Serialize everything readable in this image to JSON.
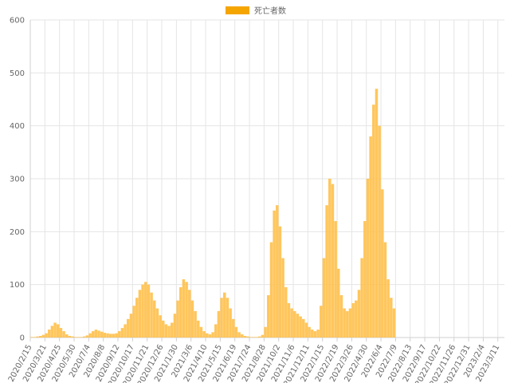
{
  "chart_data": {
    "type": "bar",
    "legend": {
      "label": "死亡者数",
      "position": "top-center",
      "color": "#f5a500"
    },
    "bar_color": "#ffc04a",
    "grid": true,
    "ylim": [
      0,
      600
    ],
    "yticks": [
      0,
      100,
      200,
      300,
      400,
      500,
      600
    ],
    "xticks": [
      "2020/2/15",
      "2020/3/21",
      "2020/4/25",
      "2020/5/30",
      "2020/7/4",
      "2020/8/8",
      "2020/9/12",
      "2020/10/17",
      "2020/11/21",
      "2020/12/26",
      "2021/1/30",
      "2021/3/6",
      "2021/4/10",
      "2021/5/15",
      "2021/6/19",
      "2021/7/24",
      "2021/8/28",
      "2021/10/2",
      "2021/11/6",
      "2021/12/11",
      "2022/1/15",
      "2022/2/19",
      "2022/3/26",
      "2022/4/30",
      "2022/6/4",
      "2022/7/9",
      "2022/8/13",
      "2022/9/17",
      "2022/10/22",
      "2022/11/26",
      "2022/12/31",
      "2023/2/4",
      "2023/3/11"
    ],
    "start_date": "2020/2/15",
    "weekly_series": {
      "name": "死亡者数",
      "x_start": "2020/2/15",
      "interval_days": 7,
      "values": [
        1,
        1,
        2,
        3,
        5,
        8,
        15,
        22,
        28,
        25,
        18,
        12,
        6,
        3,
        2,
        1,
        1,
        1,
        2,
        4,
        8,
        12,
        15,
        13,
        11,
        9,
        8,
        7,
        7,
        8,
        12,
        18,
        25,
        35,
        45,
        60,
        75,
        90,
        100,
        105,
        100,
        85,
        70,
        55,
        42,
        32,
        25,
        22,
        28,
        45,
        70,
        95,
        110,
        105,
        90,
        70,
        50,
        32,
        20,
        12,
        8,
        6,
        10,
        25,
        50,
        75,
        85,
        75,
        55,
        35,
        20,
        10,
        6,
        3,
        2,
        1,
        1,
        1,
        2,
        5,
        20,
        80,
        180,
        240,
        250,
        210,
        150,
        95,
        65,
        55,
        50,
        45,
        40,
        35,
        28,
        20,
        15,
        12,
        15,
        60,
        150,
        250,
        300,
        290,
        220,
        130,
        80,
        55,
        50,
        55,
        65,
        70,
        90,
        150,
        220,
        300,
        380,
        440,
        470,
        400,
        280,
        180,
        110,
        75,
        55
      ]
    }
  }
}
